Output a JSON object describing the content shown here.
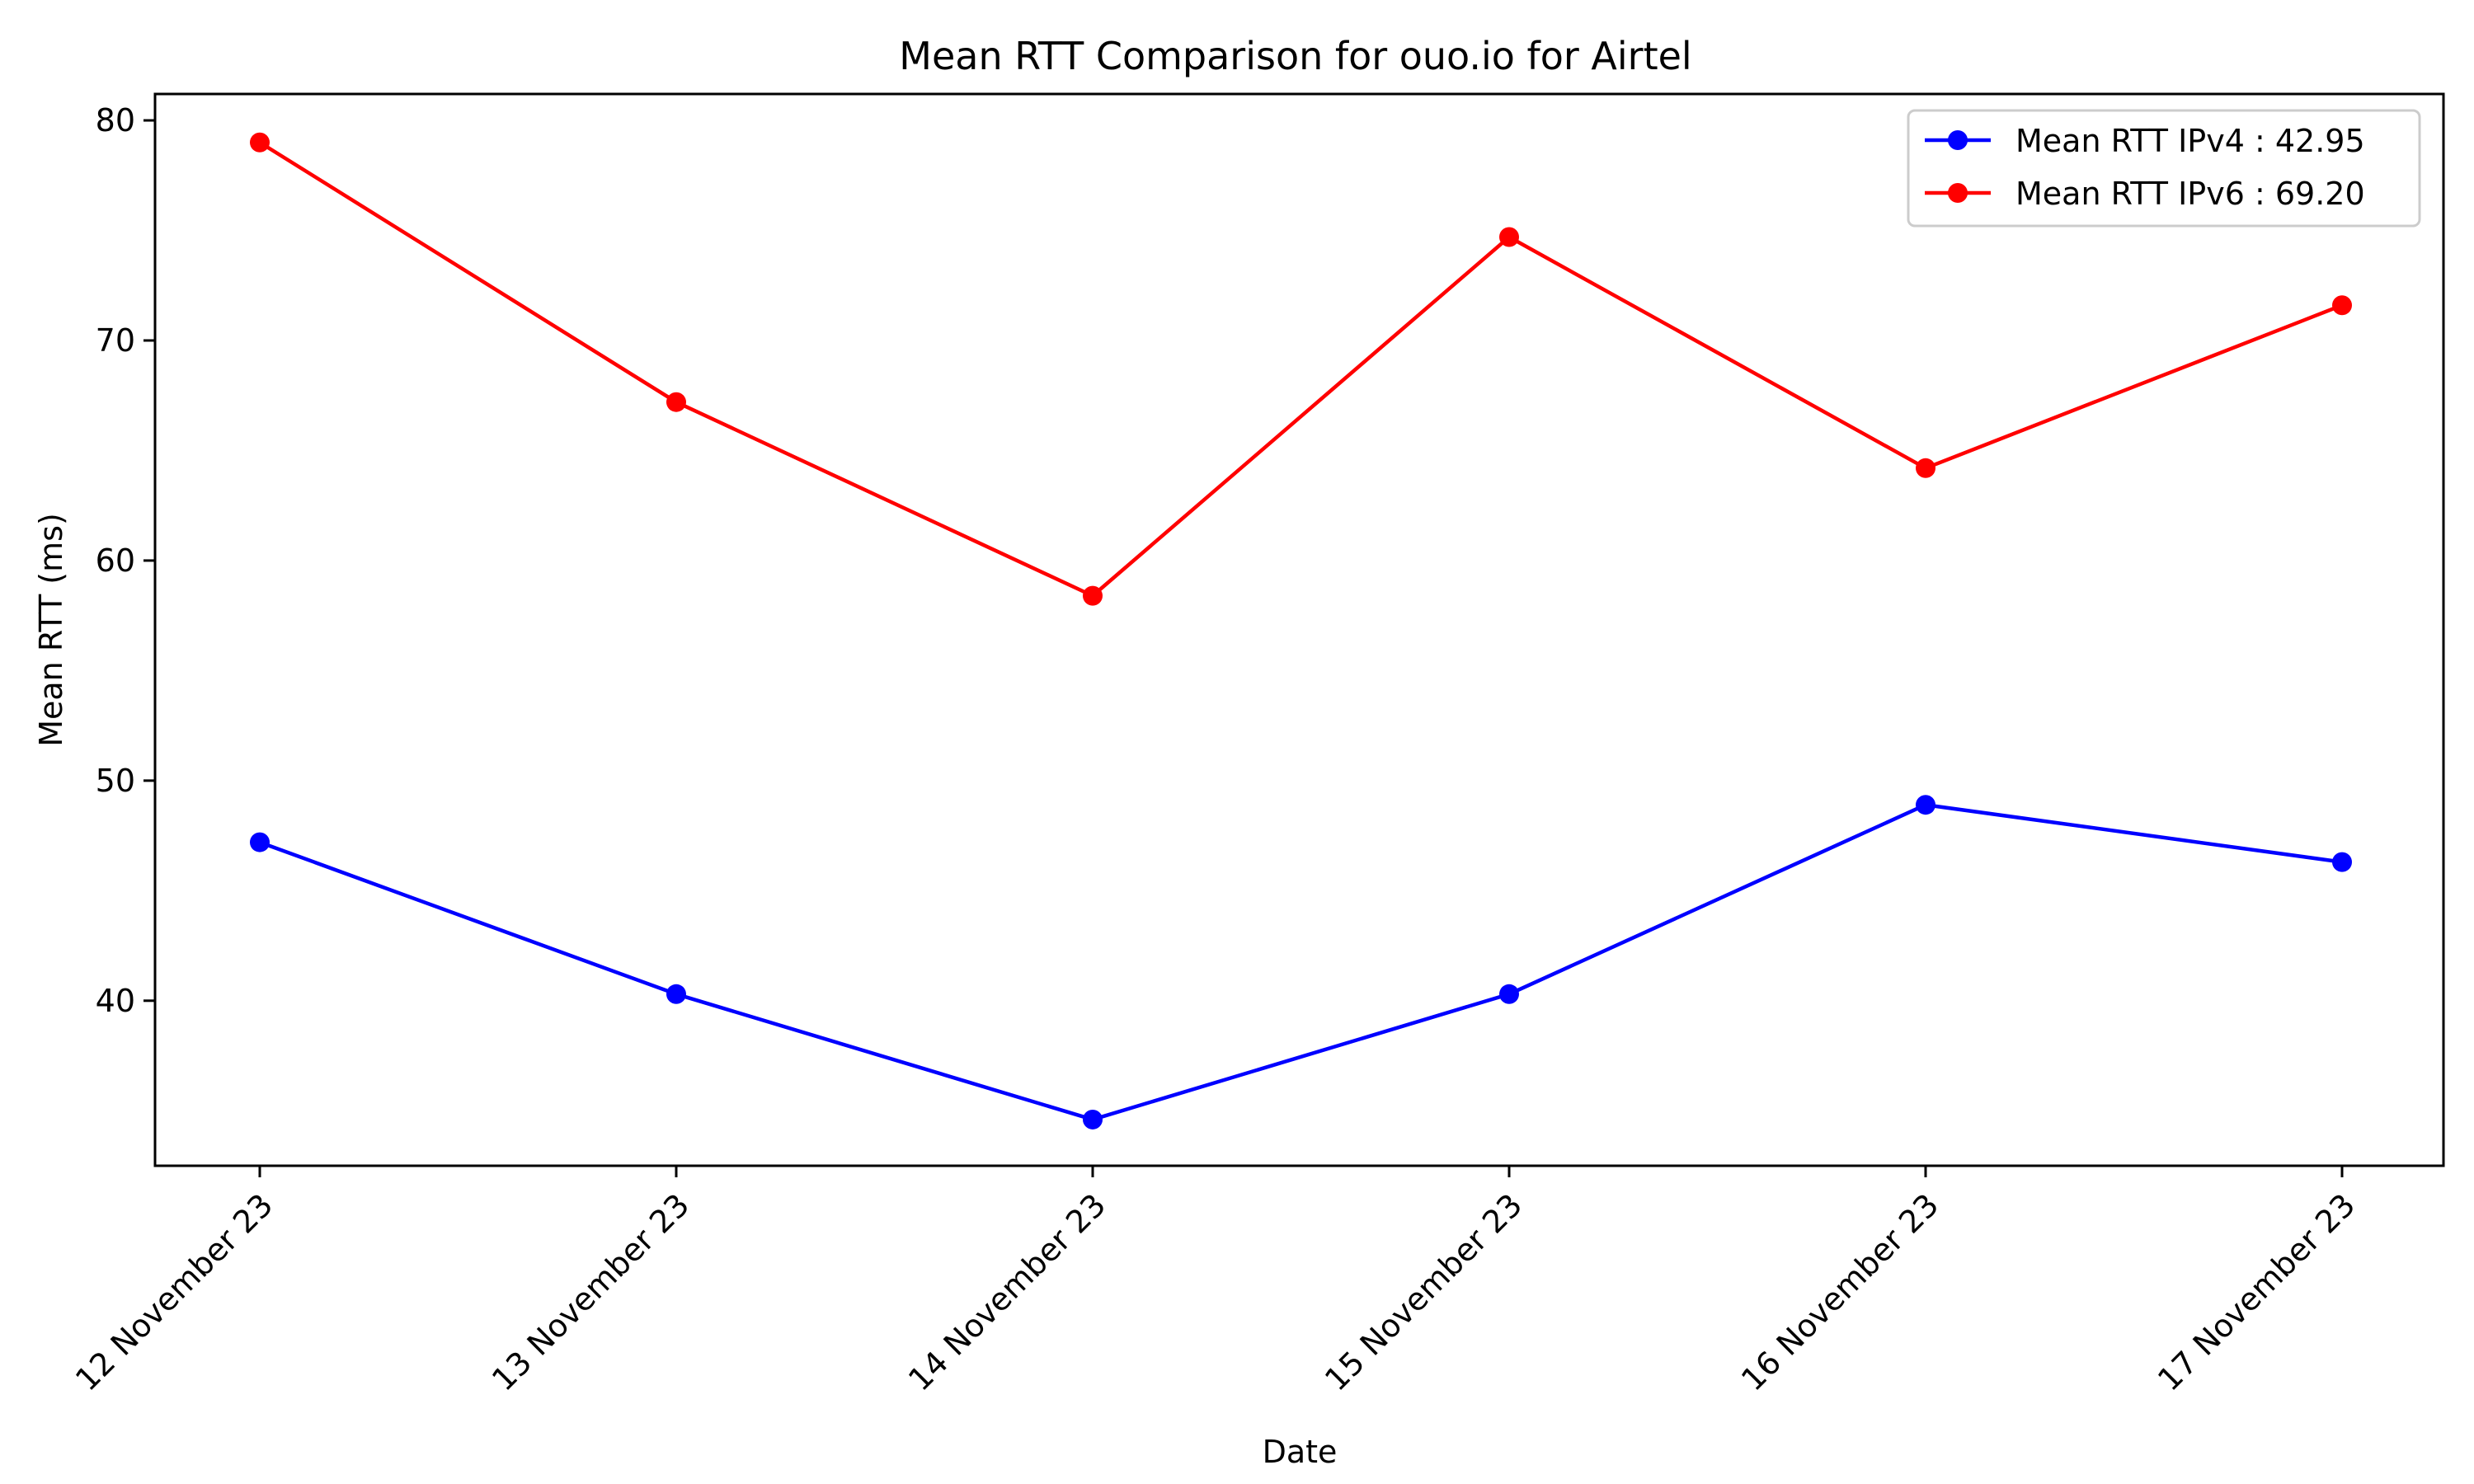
{
  "chart_data": {
    "type": "line",
    "title": "Mean RTT Comparison for ouo.io for Airtel",
    "xlabel": "Date",
    "ylabel": "Mean RTT (ms)",
    "categories": [
      "12 November 23",
      "13 November 23",
      "14 November 23",
      "15 November 23",
      "16 November 23",
      "17 November 23"
    ],
    "ylim": [
      32.5,
      81.2
    ],
    "yticks": [
      40,
      50,
      60,
      70,
      80
    ],
    "grid": false,
    "legend_position": "top-right",
    "series": [
      {
        "name": "Mean RTT IPv4 : 42.95",
        "color": "#0000ff",
        "marker": "circle",
        "values": [
          47.2,
          40.3,
          34.6,
          40.3,
          48.9,
          46.3
        ]
      },
      {
        "name": "Mean RTT IPv6 : 69.20",
        "color": "#ff0000",
        "marker": "circle",
        "values": [
          79.0,
          67.2,
          58.4,
          74.7,
          64.2,
          71.6
        ]
      }
    ]
  }
}
